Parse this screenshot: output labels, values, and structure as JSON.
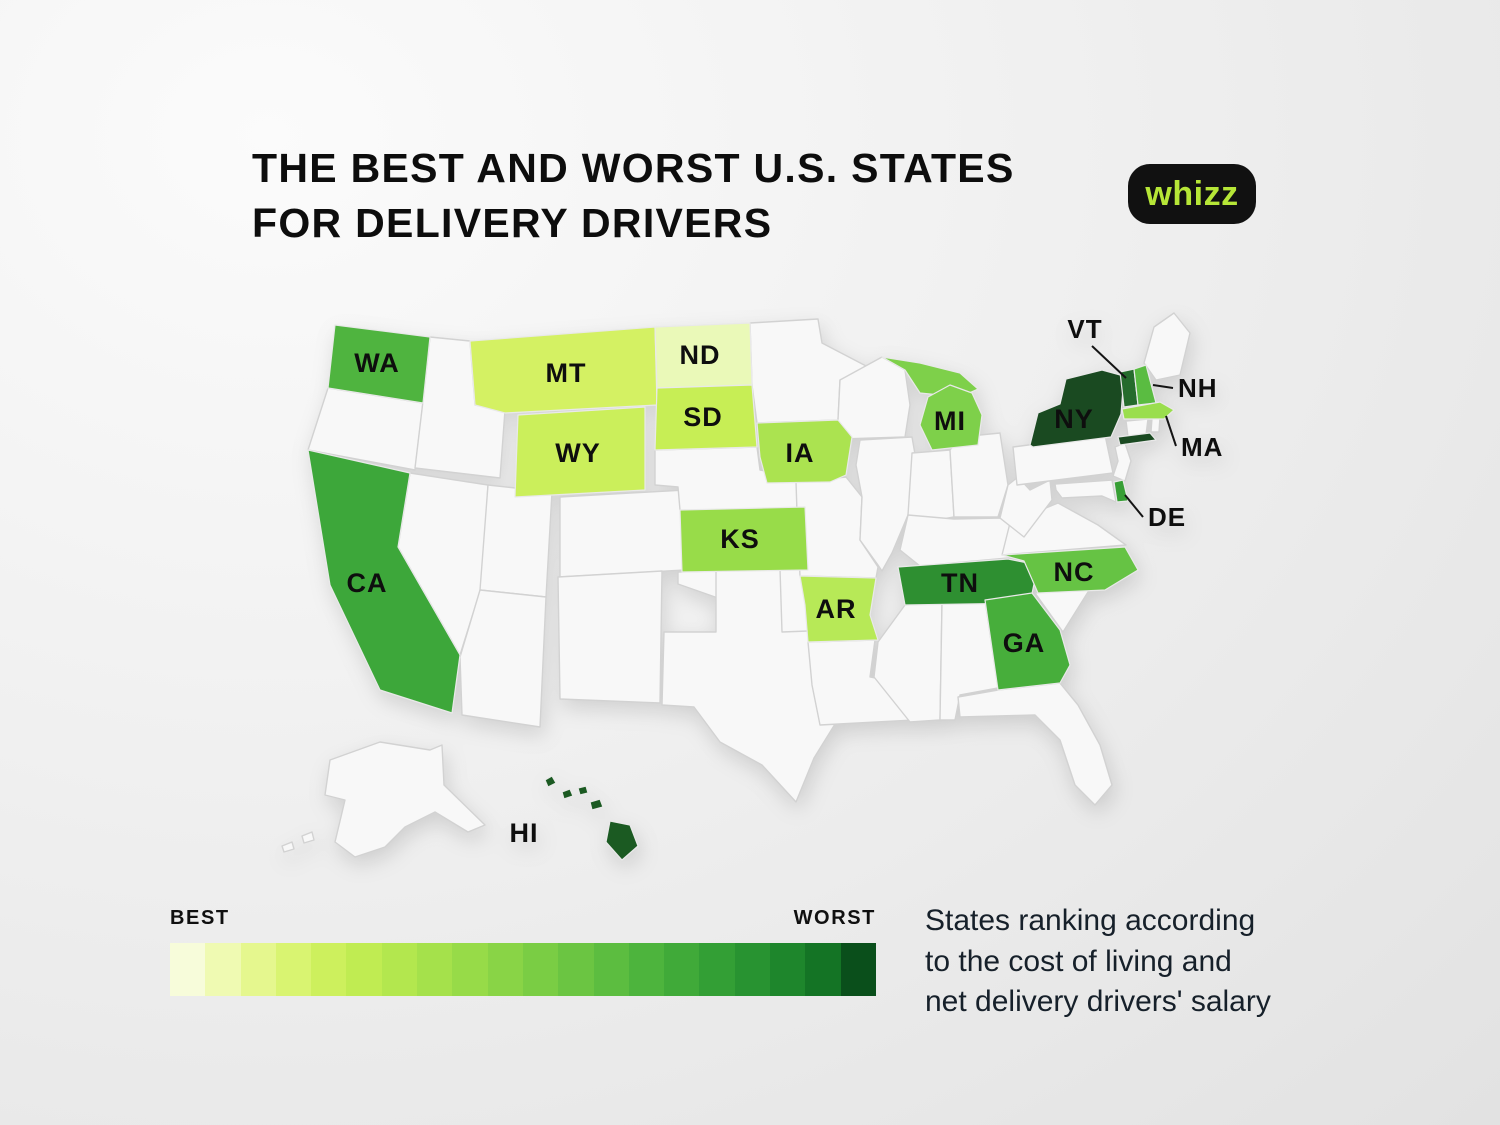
{
  "title": {
    "line1": "THE BEST AND WORST U.S. STATES",
    "line2": "FOR DELIVERY DRIVERS"
  },
  "logo": {
    "text": "whizz",
    "bg": "#111111",
    "color": "#b6e637"
  },
  "legend": {
    "best_label": "BEST",
    "worst_label": "WORST",
    "colors": [
      "#f7fcda",
      "#effab2",
      "#e5f78e",
      "#d9f471",
      "#cdf05d",
      "#c0ec52",
      "#b3e74e",
      "#a5e14b",
      "#97db48",
      "#89d446",
      "#7acd44",
      "#6bc542",
      "#5cbd40",
      "#4db43d",
      "#40aa39",
      "#339f35",
      "#289331",
      "#1e862c",
      "#147425",
      "#0a4f1b"
    ]
  },
  "caption": {
    "line1": "States ranking according",
    "line2": "to the cost of living and",
    "line3": "net delivery drivers' salary"
  },
  "map": {
    "ranking_note": "color ramp from BEST (pale) to WORST (dark green)",
    "states": {
      "WA": {
        "label": "WA",
        "fill": "#4fb43f"
      },
      "MT": {
        "label": "MT",
        "fill": "#d4f163"
      },
      "ND": {
        "label": "ND",
        "fill": "#eaf9b8"
      },
      "SD": {
        "label": "SD",
        "fill": "#c7ee55"
      },
      "WY": {
        "label": "WY",
        "fill": "#cbef5b"
      },
      "CA": {
        "label": "CA",
        "fill": "#3da73a"
      },
      "KS": {
        "label": "KS",
        "fill": "#98dc49"
      },
      "IA": {
        "label": "IA",
        "fill": "#abe350"
      },
      "AR": {
        "label": "AR",
        "fill": "#b7e957"
      },
      "MI": {
        "label": "MI",
        "fill": "#7ed04a"
      },
      "TN": {
        "label": "TN",
        "fill": "#2e8f31"
      },
      "NC": {
        "label": "NC",
        "fill": "#66c344"
      },
      "GA": {
        "label": "GA",
        "fill": "#47ae3b"
      },
      "HI": {
        "label": "HI",
        "fill": "#1b5a22"
      },
      "NY": {
        "label": "NY",
        "fill": "#1a4a21"
      },
      "VT": {
        "label": "VT",
        "fill": "#256b2c"
      },
      "NH": {
        "label": "NH",
        "fill": "#5abc41"
      },
      "MA": {
        "label": "MA",
        "fill": "#9ade4d"
      },
      "DE": {
        "label": "DE",
        "fill": "#379f35"
      }
    }
  }
}
